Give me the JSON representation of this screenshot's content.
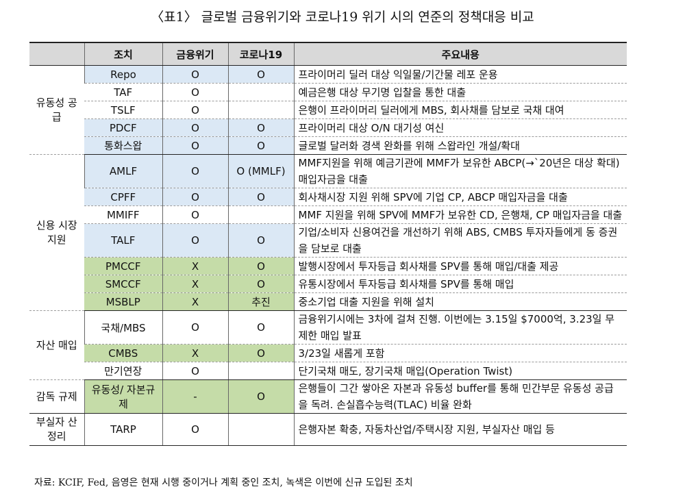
{
  "title": "〈표1〉 글로벌 금융위기와 코로나19 위기 시의 연준의 정책대응 비교",
  "headers": [
    "",
    "조치",
    "금융위기",
    "코로나19",
    "주요내용"
  ],
  "groups": [
    {
      "label": "유동성 공급",
      "rows": [
        {
          "measure": "Repo",
          "gfc": "O",
          "covid": "O",
          "desc": "프라이머리 딜러 대상 익일물/기간물 레포 운용",
          "color": "blue"
        },
        {
          "measure": "TAF",
          "gfc": "O",
          "covid": "",
          "desc": "예금은행 대상 무기명 입찰을 통한 대출",
          "color": "white"
        },
        {
          "measure": "TSLF",
          "gfc": "O",
          "covid": "",
          "desc": "은행이 프라이머리 딜러에게 MBS, 회사채를 담보로 국채 대여",
          "color": "white"
        },
        {
          "measure": "PDCF",
          "gfc": "O",
          "covid": "O",
          "desc": "프라이머리 대상 O/N 대기성 여신",
          "color": "blue"
        },
        {
          "measure": "통화스왑",
          "gfc": "O",
          "covid": "O",
          "desc": "글로벌 달러화 경색 완화를 위해 스왑라인 개설/확대",
          "color": "blue"
        }
      ]
    },
    {
      "label": "신용 시장 지원",
      "rows": [
        {
          "measure": "AMLF",
          "gfc": "O",
          "covid": "O (MMLF)",
          "desc": "MMF지원을 위해 예금기관에 MMF가 보유한 ABCP(→`20년은 대상 확대) 매입자금을 대출",
          "color": "blue",
          "tall": true
        },
        {
          "measure": "CPFF",
          "gfc": "O",
          "covid": "O",
          "desc": "회사채시장 지원 위해 SPV에 기업 CP, ABCP 매입자금을 대출",
          "color": "blue"
        },
        {
          "measure": "MMIFF",
          "gfc": "O",
          "covid": "",
          "desc": "MMF 지원을 위해 SPV에 MMF가 보유한 CD, 은행채, CP 매입자금을 대출",
          "color": "white"
        },
        {
          "measure": "TALF",
          "gfc": "O",
          "covid": "O",
          "desc": "기업/소비자 신용여건을 개선하기 위해 ABS, CMBS 투자자들에게 동 증권을 담보로 대출",
          "color": "blue",
          "tall": true
        },
        {
          "measure": "PMCCF",
          "gfc": "X",
          "covid": "O",
          "desc": "발행시장에서 투자등급 회사채를 SPV를 통해 매입/대출 제공",
          "color": "green"
        },
        {
          "measure": "SMCCF",
          "gfc": "X",
          "covid": "O",
          "desc": "유통시장에서 투자등급 회사채를 SPV를 통해 매입",
          "color": "green"
        },
        {
          "measure": "MSBLP",
          "gfc": "X",
          "covid": "추진",
          "desc": "중소기업 대출 지원을 위해 설치",
          "color": "green"
        }
      ]
    },
    {
      "label": "자산 매입",
      "rows": [
        {
          "measure": "국채/MBS",
          "gfc": "O",
          "covid": "O",
          "desc": "금융위기시에는 3차에 걸쳐 진행. 이번에는 3.15일 $7000억, 3.23일 무제한 매입 발표",
          "color": "white",
          "tall": true
        },
        {
          "measure": "CMBS",
          "gfc": "X",
          "covid": "O",
          "desc": "3/23일 새롭게 포함",
          "color": "green"
        },
        {
          "measure": "만기연장",
          "gfc": "O",
          "covid": "",
          "desc": "단기국채 매도, 장기국채 매입(Operation Twist)",
          "color": "white"
        }
      ]
    },
    {
      "label": "감독 규제",
      "rows": [
        {
          "measure": "유동성/ 자본규제",
          "gfc": "-",
          "covid": "O",
          "desc": "은행들이 그간 쌓아온 자본과 유동성 buffer를 통해 민간부문 유동성 공급을 독려. 손실흡수능력(TLAC) 비율 완화",
          "color": "green",
          "tall": true
        }
      ]
    },
    {
      "label": "부실자 산정리",
      "rows": [
        {
          "measure": "TARP",
          "gfc": "O",
          "covid": "",
          "desc": "은행자본 확충, 자동차산업/주택시장 지원, 부실자산 매입 등",
          "color": "white",
          "tall": true
        }
      ]
    }
  ],
  "colors": {
    "blue": "#dbe8f5",
    "green": "#c5dca8",
    "header": "#d9d9d9"
  },
  "note": "자료: KCIF, Fed, 음영은 현재 시행 중이거나 계획 중인 조치, 녹색은 이번에 신규 도입된 조치"
}
